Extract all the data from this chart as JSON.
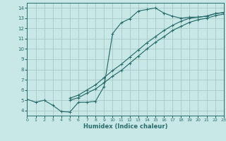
{
  "xlabel": "Humidex (Indice chaleur)",
  "xlim": [
    0,
    23
  ],
  "ylim": [
    3.5,
    14.5
  ],
  "xticks": [
    0,
    1,
    2,
    3,
    4,
    5,
    6,
    7,
    8,
    9,
    10,
    11,
    12,
    13,
    14,
    15,
    16,
    17,
    18,
    19,
    20,
    21,
    22,
    23
  ],
  "yticks": [
    4,
    5,
    6,
    7,
    8,
    9,
    10,
    11,
    12,
    13,
    14
  ],
  "background_color": "#c8e8e8",
  "line_color": "#2a6b6b",
  "grid_color": "#a8c8c8",
  "curve1_x": [
    0,
    1,
    2,
    3,
    4,
    5,
    6,
    7,
    8,
    9,
    10,
    11,
    12,
    13,
    14,
    15,
    16,
    17,
    18,
    19,
    20,
    21,
    22,
    23
  ],
  "curve1_y": [
    5.1,
    4.8,
    5.0,
    4.5,
    3.9,
    3.85,
    4.8,
    4.8,
    4.9,
    6.35,
    11.5,
    12.55,
    12.95,
    13.7,
    13.85,
    14.0,
    13.5,
    13.2,
    13.0,
    13.1,
    13.1,
    13.2,
    13.45,
    13.55
  ],
  "curve2_x": [
    5,
    6,
    7,
    8,
    9,
    10,
    11,
    12,
    13,
    14,
    15,
    16,
    17,
    18,
    19,
    20,
    21,
    22,
    23
  ],
  "curve2_y": [
    5.2,
    5.5,
    6.0,
    6.5,
    7.2,
    7.9,
    8.5,
    9.2,
    9.9,
    10.6,
    11.2,
    11.8,
    12.3,
    12.7,
    13.0,
    13.1,
    13.2,
    13.45,
    13.55
  ],
  "curve3_x": [
    5,
    6,
    7,
    8,
    9,
    10,
    11,
    12,
    13,
    14,
    15,
    16,
    17,
    18,
    19,
    20,
    21,
    22,
    23
  ],
  "curve3_y": [
    5.0,
    5.25,
    5.7,
    6.1,
    6.7,
    7.35,
    7.9,
    8.6,
    9.3,
    10.0,
    10.65,
    11.2,
    11.8,
    12.2,
    12.6,
    12.85,
    13.0,
    13.25,
    13.4
  ]
}
